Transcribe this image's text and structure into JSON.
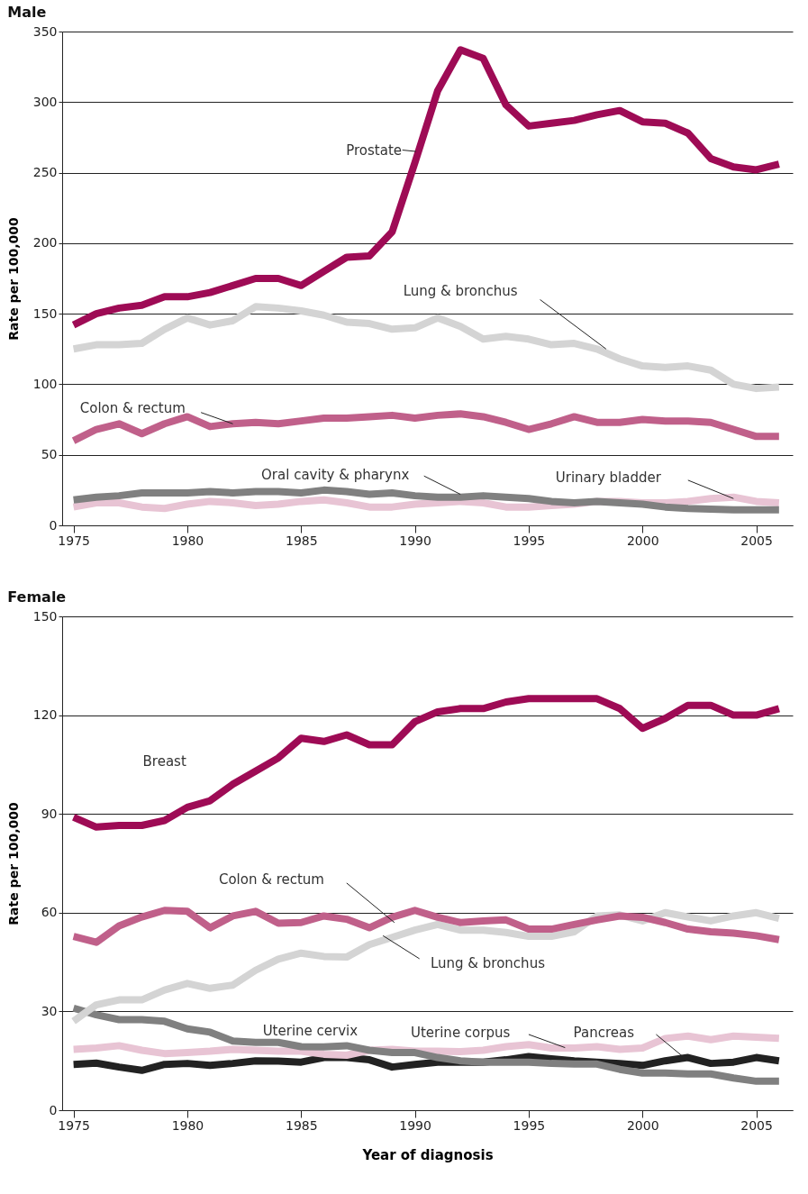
{
  "chart_data": [
    {
      "type": "line",
      "title": "Male",
      "ylabel": "Rate per 100,000",
      "x": [
        1975,
        1976,
        1977,
        1978,
        1979,
        1980,
        1981,
        1982,
        1983,
        1984,
        1985,
        1986,
        1987,
        1988,
        1989,
        1990,
        1991,
        1992,
        1993,
        1994,
        1995,
        1996,
        1997,
        1998,
        1999,
        2000,
        2001,
        2002,
        2003,
        2004,
        2005,
        2006
      ],
      "xlim": [
        1974.5,
        2006.6
      ],
      "ylim": [
        0,
        350
      ],
      "xticks": [
        1975,
        1980,
        1985,
        1990,
        1995,
        2000,
        2005
      ],
      "yticks": [
        0,
        50,
        100,
        150,
        200,
        250,
        300,
        350
      ],
      "grid": "y",
      "series": [
        {
          "name": "Prostate",
          "color": "#9e0b55",
          "values": [
            142,
            150,
            154,
            156,
            162,
            162,
            165,
            170,
            175,
            175,
            170,
            180,
            190,
            191,
            208,
            257,
            308,
            337,
            331,
            298,
            283,
            285,
            287,
            291,
            294,
            286,
            285,
            278,
            260,
            254,
            252,
            256
          ]
        },
        {
          "name": "Lung & bronchus",
          "color": "#d4d4d4",
          "values": [
            125,
            128,
            128,
            129,
            139,
            147,
            142,
            145,
            155,
            154,
            152,
            149,
            144,
            143,
            139,
            140,
            147,
            141,
            132,
            134,
            132,
            128,
            129,
            125,
            118,
            113,
            112,
            113,
            110,
            100,
            97,
            98
          ]
        },
        {
          "name": "Colon & rectum",
          "color": "#c0608a",
          "values": [
            60,
            68,
            72,
            65,
            72,
            77,
            70,
            72,
            73,
            72,
            74,
            76,
            76,
            77,
            78,
            76,
            78,
            79,
            77,
            73,
            68,
            72,
            77,
            73,
            73,
            75,
            74,
            74,
            73,
            68,
            63,
            63
          ]
        },
        {
          "name": "Oral cavity & pharynx",
          "color": "#808080",
          "values": [
            18,
            20,
            21,
            23,
            23,
            23,
            24,
            23,
            24,
            24,
            23,
            25,
            24,
            22,
            23,
            21,
            20,
            20,
            21,
            20,
            19,
            17,
            16,
            17,
            16,
            15,
            13,
            12,
            11.5,
            11,
            11,
            11
          ]
        },
        {
          "name": "Urinary bladder",
          "color": "#e8c4d4",
          "values": [
            13,
            16,
            16,
            13,
            12,
            15,
            17,
            16,
            14,
            15,
            17,
            18,
            16,
            13,
            13,
            15,
            16,
            17,
            16,
            13,
            13,
            14,
            15,
            17,
            17,
            16,
            16,
            17,
            19,
            20,
            17,
            16
          ]
        }
      ]
    },
    {
      "type": "line",
      "title": "Female",
      "ylabel": "Rate per 100,000",
      "xlabel": "Year of diagnosis",
      "x": [
        1975,
        1976,
        1977,
        1978,
        1979,
        1980,
        1981,
        1982,
        1983,
        1984,
        1985,
        1986,
        1987,
        1988,
        1989,
        1990,
        1991,
        1992,
        1993,
        1994,
        1995,
        1996,
        1997,
        1998,
        1999,
        2000,
        2001,
        2002,
        2003,
        2004,
        2005,
        2006
      ],
      "xlim": [
        1974.5,
        2006.6
      ],
      "ylim": [
        0,
        150
      ],
      "xticks": [
        1975,
        1980,
        1985,
        1990,
        1995,
        2000,
        2005
      ],
      "yticks": [
        0,
        30,
        60,
        90,
        120,
        150
      ],
      "grid": "y",
      "series": [
        {
          "name": "Breast",
          "color": "#9e0b55",
          "values": [
            89,
            86,
            86.5,
            86.5,
            88,
            92,
            94,
            99,
            103,
            107,
            113,
            112,
            114,
            111,
            111,
            118,
            121,
            122,
            122,
            124,
            125,
            125,
            125,
            125,
            122,
            116,
            119,
            123,
            123,
            120,
            120,
            122
          ]
        },
        {
          "name": "Colon & rectum",
          "color": "#c0608a",
          "values": [
            52.8,
            51,
            56,
            58.7,
            60.7,
            60.4,
            55.4,
            59,
            60.4,
            56.8,
            57,
            59,
            58,
            55.4,
            58.6,
            60.7,
            58.6,
            57,
            57.5,
            57.8,
            55,
            55,
            56.4,
            57.8,
            59,
            58.6,
            57,
            55,
            54.2,
            53.8,
            53,
            51.8
          ]
        },
        {
          "name": "Lung & bronchus",
          "color": "#d4d4d4",
          "values": [
            27,
            32,
            33.5,
            33.5,
            36.5,
            38.5,
            37,
            38,
            42.5,
            45.9,
            47.7,
            46.7,
            46.5,
            50.3,
            52.5,
            54.7,
            56.4,
            54.7,
            54.7,
            54,
            52.8,
            52.8,
            54.2,
            59,
            59.3,
            57.5,
            60,
            58.7,
            57.5,
            59,
            60,
            58.3
          ]
        },
        {
          "name": "Uterine cervix",
          "color": "#808080",
          "values": [
            31,
            29,
            27.5,
            27.5,
            27,
            24.7,
            23.7,
            21,
            20.6,
            20.6,
            19.3,
            19.2,
            19.6,
            18.2,
            17.5,
            17.5,
            16,
            15,
            14.6,
            14.6,
            14.6,
            14.2,
            14,
            14,
            12.4,
            11.3,
            11.3,
            11,
            11,
            9.8,
            8.8,
            8.8
          ]
        },
        {
          "name": "Uterine corpus",
          "color": "#e8c4d4",
          "values": [
            18.5,
            18.9,
            19.6,
            18.2,
            17.2,
            17.5,
            17.9,
            18.5,
            18.2,
            17.9,
            17.9,
            17,
            16.7,
            18.2,
            18.5,
            17.9,
            17.9,
            17.8,
            18.2,
            19.3,
            19.9,
            18.9,
            18.9,
            19.3,
            18.5,
            18.9,
            21.8,
            22.5,
            21.4,
            22.5,
            22.2,
            21.8
          ]
        },
        {
          "name": "Pancreas",
          "color": "#222222",
          "values": [
            13.9,
            14.3,
            13.1,
            12.1,
            13.9,
            14.2,
            13.6,
            14.2,
            15,
            14.9,
            14.6,
            16,
            16,
            15.3,
            13.1,
            13.9,
            14.6,
            14.6,
            14.6,
            15.3,
            16.3,
            15.6,
            15,
            14.6,
            14.2,
            13.6,
            15,
            16,
            14.2,
            14.6,
            16,
            15
          ]
        }
      ]
    }
  ]
}
